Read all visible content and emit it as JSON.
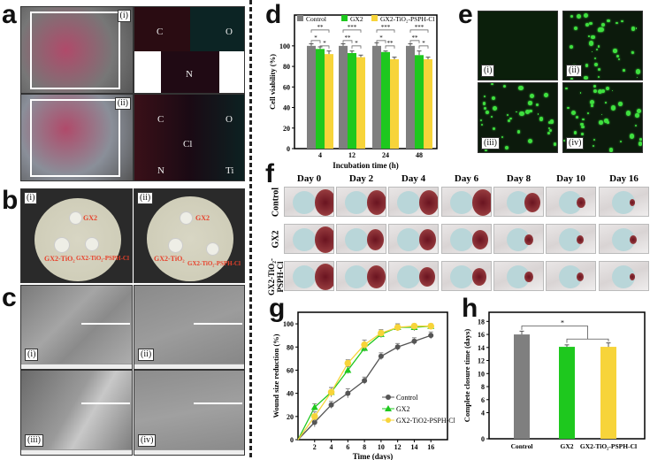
{
  "panels": {
    "a": "a",
    "b": "b",
    "c": "c",
    "d": "d",
    "e": "e",
    "f": "f",
    "g": "g",
    "h": "h"
  },
  "a": {
    "sub": [
      "(i)",
      "(ii)"
    ],
    "maps_i": [
      "C",
      "O",
      "N"
    ],
    "maps_ii": [
      "C",
      "O",
      "Cl",
      "N",
      "Ti"
    ]
  },
  "b": {
    "sub": [
      "(i)",
      "(ii)"
    ],
    "labels": [
      "GX2",
      "GX2-TiO₂",
      "GX2-TiO₂-PSPH-Cl"
    ]
  },
  "c": {
    "sub": [
      "(i)",
      "(ii)",
      "(iii)",
      "(iv)"
    ]
  },
  "e": {
    "sub": [
      "(i)",
      "(ii)",
      "(iii)",
      "(iv)"
    ]
  },
  "f": {
    "days": [
      "Day 0",
      "Day 2",
      "Day 4",
      "Day 6",
      "Day 8",
      "Day 10",
      "Day 16"
    ],
    "rows": [
      "Control",
      "GX2",
      "GX2-TiO₂-PSPH-Cl"
    ]
  },
  "colors": {
    "control": "#7f7f7f",
    "gx2": "#1ec81e",
    "tri": "#f7d43a"
  },
  "chart_data": [
    {
      "id": "d",
      "type": "bar",
      "categories": [
        "4",
        "12",
        "24",
        "48"
      ],
      "xlabel": "Incubation time (h)",
      "ylabel": "Cell viability (%)",
      "ylim": [
        0,
        130
      ],
      "yticks": [
        0,
        20,
        40,
        60,
        80,
        100
      ],
      "legend": "top",
      "series": [
        {
          "name": "Control",
          "values": [
            100,
            100,
            100,
            100
          ],
          "err": [
            2,
            2,
            3,
            2
          ]
        },
        {
          "name": "GX2",
          "values": [
            97,
            93,
            94,
            91
          ],
          "err": [
            2,
            2,
            1,
            4
          ]
        },
        {
          "name": "GX2-TiO₂-PSPH-Cl",
          "values": [
            92,
            89,
            87,
            87
          ],
          "err": [
            3,
            2,
            2,
            2
          ]
        }
      ],
      "significance": [
        [
          "*",
          "*",
          "**"
        ],
        [
          "**",
          "*",
          "***"
        ],
        [
          "*",
          "**",
          "***"
        ],
        [
          "**",
          "*",
          "***"
        ]
      ]
    },
    {
      "id": "g",
      "type": "line",
      "xlabel": "Time (days)",
      "ylabel": "Wound size reduction (%)",
      "xlim": [
        0,
        18
      ],
      "ylim": [
        0,
        110
      ],
      "xticks": [
        2,
        4,
        6,
        8,
        10,
        12,
        14,
        16
      ],
      "yticks": [
        0,
        20,
        40,
        60,
        80,
        100
      ],
      "legend": "bottom-right",
      "x": [
        0,
        2,
        4,
        6,
        8,
        10,
        12,
        14,
        16
      ],
      "series": [
        {
          "name": "Control",
          "marker": "circle",
          "values": [
            0,
            15,
            30,
            40,
            51,
            72,
            80,
            85,
            90
          ],
          "err": [
            0,
            4,
            3,
            4,
            3,
            3,
            3,
            3,
            3
          ]
        },
        {
          "name": "GX2",
          "marker": "triangle",
          "values": [
            0,
            28,
            41,
            60,
            79,
            91,
            97,
            97,
            98
          ],
          "err": [
            0,
            3,
            4,
            3,
            3,
            3,
            3,
            3,
            2
          ]
        },
        {
          "name": "GX2-TiO2-PSPH-Cl",
          "marker": "hexagon",
          "values": [
            0,
            20,
            41,
            66,
            82,
            92,
            97,
            98,
            98
          ],
          "err": [
            0,
            4,
            4,
            3,
            4,
            3,
            3,
            2,
            2
          ]
        }
      ]
    },
    {
      "id": "h",
      "type": "bar",
      "categories": [
        "Control",
        "GX2",
        "GX2-TiO₂-PSPH-Cl"
      ],
      "xlabel": "",
      "ylabel": "Complete closure time (days)",
      "ylim": [
        0,
        19.4
      ],
      "yticks": [
        0,
        4,
        6,
        8,
        10,
        12,
        14,
        16,
        18
      ],
      "values": [
        16,
        14.1,
        14.1
      ],
      "err": [
        0.5,
        0.3,
        0.6
      ],
      "significance": "*"
    }
  ]
}
